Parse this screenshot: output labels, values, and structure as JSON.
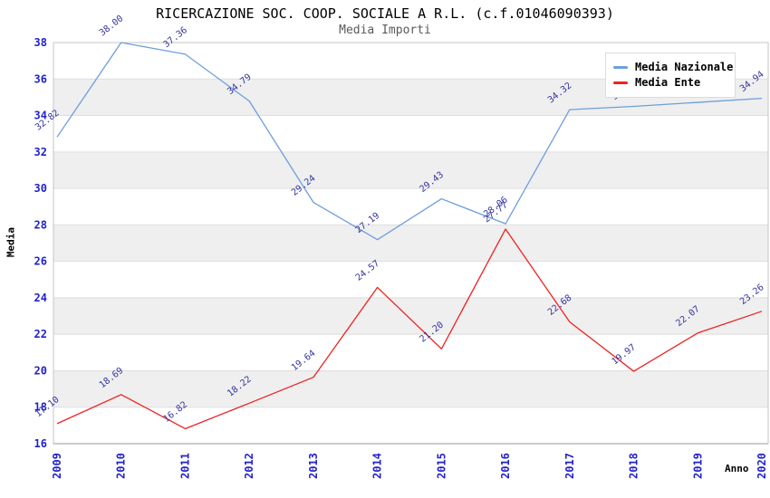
{
  "title": "RICERCAZIONE SOC. COOP. SOCIALE A R.L. (c.f.01046090393)",
  "subtitle": "Media Importi",
  "legend": {
    "items": [
      {
        "label": "Media Nazionale",
        "color": "#6e9edd"
      },
      {
        "label": "Media Ente",
        "color": "#ee2222"
      }
    ]
  },
  "chart_data": {
    "type": "line",
    "title": "RICERCAZIONE SOC. COOP. SOCIALE A R.L. (c.f.01046090393)",
    "subtitle": "Media Importi",
    "xlabel": "Anno",
    "ylabel": "Media",
    "x": [
      "2009",
      "2010",
      "2011",
      "2012",
      "2013",
      "2014",
      "2015",
      "2016",
      "2017",
      "2018",
      "2019",
      "2020"
    ],
    "ylim": [
      16,
      38
    ],
    "ytick_step": 2,
    "grid": true,
    "legend_position": "top-right",
    "series": [
      {
        "name": "Media Nazionale",
        "color": "#6e9edd",
        "values": [
          32.82,
          38.0,
          37.36,
          34.79,
          29.24,
          27.19,
          29.43,
          28.06,
          34.32,
          34.5,
          34.72,
          34.94
        ]
      },
      {
        "name": "Media Ente",
        "color": "#ee2222",
        "values": [
          17.1,
          18.69,
          16.82,
          18.22,
          19.64,
          24.57,
          21.2,
          27.77,
          22.68,
          19.97,
          22.07,
          23.26
        ]
      }
    ],
    "colors": {
      "band": "#efefef",
      "gridline": "#dedede",
      "frame": "#c6c6c6",
      "baseline": "#9a9a9a",
      "tick_label": "#2222cc",
      "data_label": "#3333a0"
    }
  }
}
